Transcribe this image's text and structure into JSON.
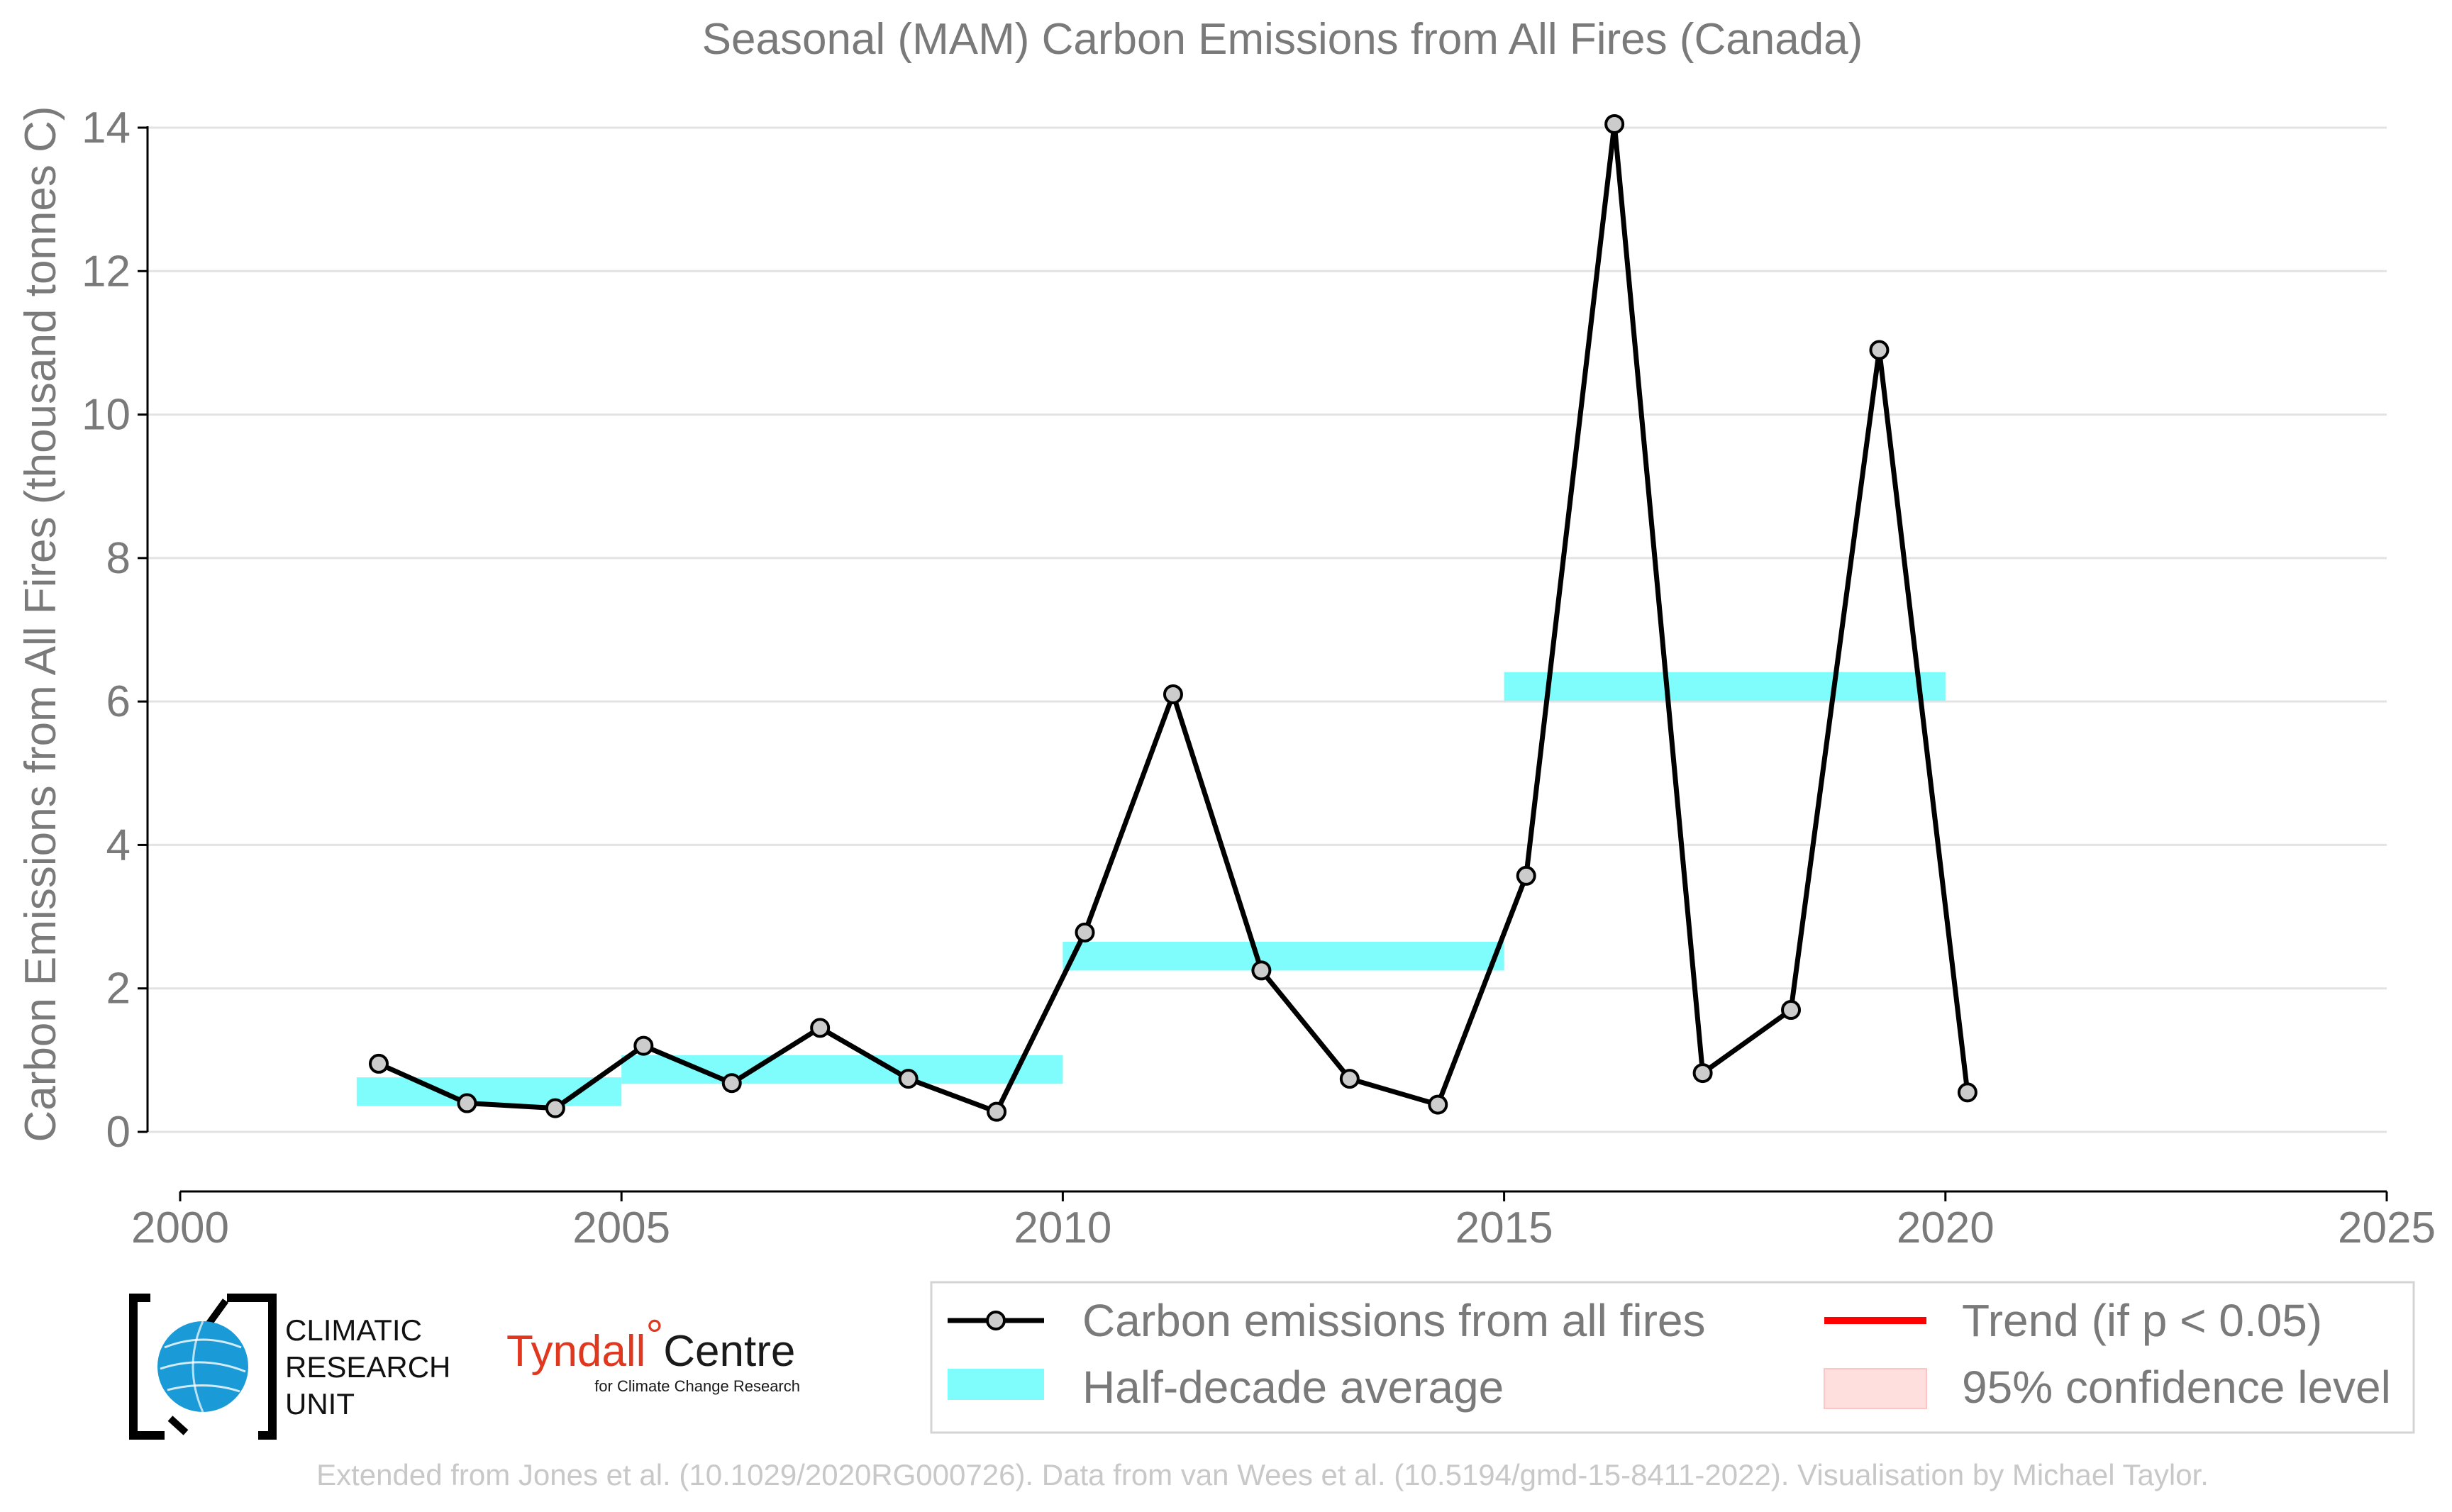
{
  "chart_data": {
    "type": "line",
    "title": "Seasonal (MAM) Carbon Emissions from All Fires (Canada)",
    "xlabel": "",
    "ylabel": "Carbon Emissions from All Fires (thousand tonnes C)",
    "xlim": [
      2000,
      2025
    ],
    "ylim": [
      -0.8,
      14.5
    ],
    "x_ticks": [
      2000,
      2005,
      2010,
      2015,
      2020,
      2025
    ],
    "y_ticks": [
      0,
      2,
      4,
      6,
      8,
      10,
      12,
      14
    ],
    "grid": "horizontal",
    "legend_position": "bottom-right",
    "series": [
      {
        "name": "Carbon emissions from all fires",
        "color": "#000000",
        "marker_color": "#cccccc",
        "x": [
          2002.25,
          2003.25,
          2004.25,
          2005.25,
          2006.25,
          2007.25,
          2008.25,
          2009.25,
          2010.25,
          2011.25,
          2012.25,
          2013.25,
          2014.25,
          2015.25,
          2016.25,
          2017.25,
          2018.25,
          2019.25,
          2020.25
        ],
        "values": [
          0.95,
          0.4,
          0.33,
          1.2,
          0.68,
          1.45,
          0.74,
          0.28,
          2.78,
          6.1,
          2.25,
          0.74,
          0.38,
          3.57,
          14.05,
          0.82,
          1.7,
          10.9,
          0.55
        ]
      }
    ],
    "half_decade_averages": {
      "name": "Half-decade average",
      "color": "#7ffcfc",
      "band_height": 0.4,
      "segments": [
        {
          "x_start": 2002,
          "x_end": 2005,
          "value": 0.56
        },
        {
          "x_start": 2005,
          "x_end": 2010,
          "value": 0.87
        },
        {
          "x_start": 2010,
          "x_end": 2015,
          "value": 2.45
        },
        {
          "x_start": 2015,
          "x_end": 2020,
          "value": 6.21
        }
      ]
    },
    "legend": [
      {
        "label": "Carbon emissions from all fires",
        "kind": "line-marker",
        "color": "#000000"
      },
      {
        "label": "Trend (if p < 0.05)",
        "kind": "line",
        "color": "#ff0000"
      },
      {
        "label": "Half-decade average",
        "kind": "band",
        "color": "#7ffcfc"
      },
      {
        "label": "95% confidence level",
        "kind": "band",
        "color": "#ffdede"
      }
    ]
  },
  "credits": "Extended from Jones et al. (10.1029/2020RG000726). Data from van Wees et al. (10.5194/gmd-15-8411-2022). Visualisation by Michael Taylor.",
  "logos": {
    "cru": {
      "lines": [
        "CLIMATIC",
        "RESEARCH",
        "UNIT"
      ],
      "globe_color": "#1a9ad6"
    },
    "tyndall": {
      "name": "Tyndall",
      "degree": "°",
      "centre": "Centre",
      "subtitle": "for Climate Change Research",
      "color": "#e2371f"
    }
  }
}
